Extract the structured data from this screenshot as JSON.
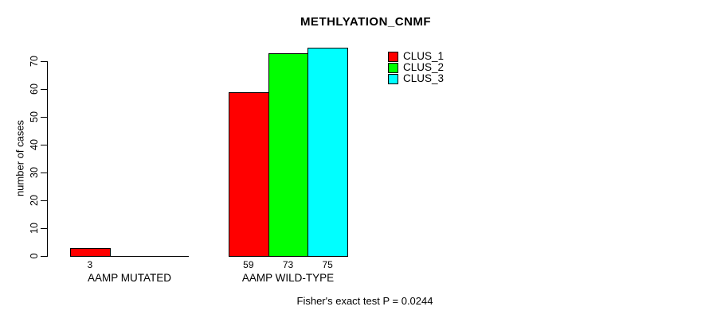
{
  "chart_data": {
    "type": "bar",
    "title": "METHLYATION_CNMF",
    "ylabel": "number of cases",
    "xlabel": "",
    "categories": [
      "AAMP MUTATED",
      "AAMP WILD-TYPE"
    ],
    "series": [
      {
        "name": "CLUS_1",
        "color": "#ff0000",
        "values": [
          3,
          59
        ]
      },
      {
        "name": "CLUS_2",
        "color": "#00ff00",
        "values": [
          0,
          73
        ]
      },
      {
        "name": "CLUS_3",
        "color": "#00ffff",
        "values": [
          0,
          75
        ]
      }
    ],
    "bar_value_labels": [
      [
        "3",
        null,
        null
      ],
      [
        "59",
        "73",
        "75"
      ]
    ],
    "yticks": [
      0,
      10,
      20,
      30,
      40,
      50,
      60,
      70
    ],
    "ylim": [
      0,
      70
    ],
    "grid": false,
    "legend_position": "top-right",
    "annotation": "Fisher's exact test P = 0.0244"
  },
  "colors": {
    "background": "#ffffff",
    "axis": "#000000",
    "text": "#000000",
    "clus_1": "#ff0000",
    "clus_2": "#00ff00",
    "clus_3": "#00ffff"
  }
}
